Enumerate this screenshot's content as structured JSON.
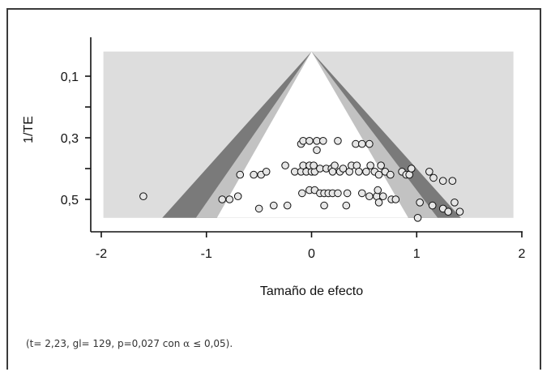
{
  "chart_data": {
    "type": "scatter",
    "subtype": "funnel-plot",
    "title": "",
    "xlabel": "Tamaño de efecto",
    "ylabel": "1/TE",
    "xlim": [
      -2,
      2
    ],
    "ylim": [
      0.58,
      0.02
    ],
    "y_inverted": true,
    "x_ticks": [
      "-2",
      "-1",
      "0",
      "1",
      "2"
    ],
    "x_tick_values": [
      -2,
      -1,
      0,
      1,
      2
    ],
    "y_ticks": [
      "0,1",
      "0,3",
      "0,5"
    ],
    "y_tick_values": [
      0.1,
      0.3,
      0.5
    ],
    "y_minor_ticks": [
      0.2,
      0.4
    ],
    "grid": false,
    "funnel": {
      "apex": [
        0,
        0.02
      ],
      "plot_bottom": 0.56,
      "outer_band_bottom_x": [
        -1.42,
        1.42
      ],
      "mid_band_bottom_x": [
        -1.1,
        1.2
      ],
      "inner_region_bottom_x": [
        -0.9,
        0.92
      ]
    },
    "colors": {
      "background_region": "#dddddd",
      "outer_band": "#7a7a7a",
      "mid_band": "#c2c2c2",
      "inner_region": "#ffffff",
      "point_fill": "#e6e6e6",
      "point_stroke": "#111111"
    },
    "points": [
      [
        -1.6,
        0.49
      ],
      [
        -0.85,
        0.5
      ],
      [
        -0.78,
        0.5
      ],
      [
        -0.7,
        0.49
      ],
      [
        -0.68,
        0.42
      ],
      [
        -0.55,
        0.42
      ],
      [
        -0.48,
        0.42
      ],
      [
        -0.43,
        0.41
      ],
      [
        -0.5,
        0.53
      ],
      [
        -0.36,
        0.52
      ],
      [
        -0.23,
        0.52
      ],
      [
        -0.25,
        0.39
      ],
      [
        -0.16,
        0.41
      ],
      [
        -0.1,
        0.41
      ],
      [
        -0.05,
        0.41
      ],
      [
        0.0,
        0.41
      ],
      [
        0.03,
        0.41
      ],
      [
        -0.08,
        0.39
      ],
      [
        -0.02,
        0.39
      ],
      [
        0.02,
        0.39
      ],
      [
        -0.1,
        0.32
      ],
      [
        -0.08,
        0.31
      ],
      [
        -0.02,
        0.31
      ],
      [
        0.05,
        0.31
      ],
      [
        0.11,
        0.31
      ],
      [
        0.25,
        0.31
      ],
      [
        0.05,
        0.34
      ],
      [
        0.08,
        0.4
      ],
      [
        0.14,
        0.4
      ],
      [
        0.19,
        0.4
      ],
      [
        0.22,
        0.39
      ],
      [
        0.2,
        0.41
      ],
      [
        0.27,
        0.41
      ],
      [
        0.3,
        0.4
      ],
      [
        0.36,
        0.41
      ],
      [
        0.38,
        0.39
      ],
      [
        0.43,
        0.39
      ],
      [
        0.45,
        0.41
      ],
      [
        0.52,
        0.41
      ],
      [
        0.56,
        0.39
      ],
      [
        0.6,
        0.41
      ],
      [
        0.64,
        0.42
      ],
      [
        0.66,
        0.39
      ],
      [
        0.7,
        0.41
      ],
      [
        0.75,
        0.42
      ],
      [
        0.42,
        0.32
      ],
      [
        0.48,
        0.32
      ],
      [
        0.55,
        0.32
      ],
      [
        -0.09,
        0.48
      ],
      [
        -0.02,
        0.47
      ],
      [
        0.03,
        0.47
      ],
      [
        0.08,
        0.48
      ],
      [
        0.12,
        0.48
      ],
      [
        0.16,
        0.48
      ],
      [
        0.2,
        0.48
      ],
      [
        0.25,
        0.48
      ],
      [
        0.34,
        0.48
      ],
      [
        0.48,
        0.48
      ],
      [
        0.55,
        0.49
      ],
      [
        0.62,
        0.49
      ],
      [
        0.63,
        0.47
      ],
      [
        0.68,
        0.49
      ],
      [
        0.76,
        0.5
      ],
      [
        0.8,
        0.5
      ],
      [
        0.12,
        0.52
      ],
      [
        0.33,
        0.52
      ],
      [
        0.64,
        0.51
      ],
      [
        0.86,
        0.41
      ],
      [
        0.9,
        0.42
      ],
      [
        0.93,
        0.42
      ],
      [
        0.95,
        0.4
      ],
      [
        1.12,
        0.41
      ],
      [
        1.16,
        0.43
      ],
      [
        1.25,
        0.44
      ],
      [
        1.34,
        0.44
      ],
      [
        1.03,
        0.51
      ],
      [
        1.15,
        0.52
      ],
      [
        1.25,
        0.53
      ],
      [
        1.3,
        0.54
      ],
      [
        1.36,
        0.51
      ],
      [
        1.41,
        0.54
      ],
      [
        1.01,
        0.56
      ]
    ]
  },
  "footnote": {
    "prefix": "(t= 2,23, gl= 129, p=0,027 con ",
    "alpha": "α",
    "suffix": " ≤ 0,05)."
  }
}
